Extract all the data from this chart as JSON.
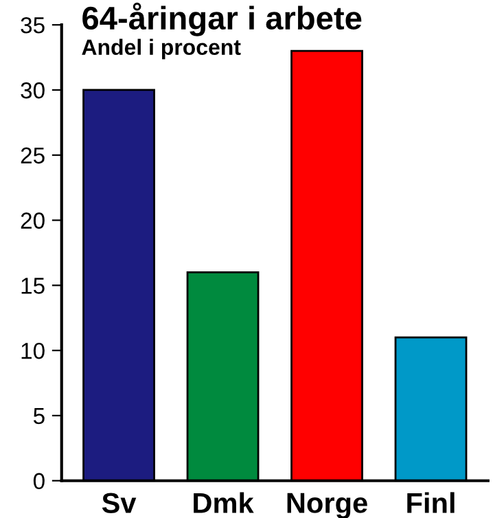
{
  "chart_data": {
    "type": "bar",
    "title": "64-åringar i arbete",
    "subtitle": "Andel i procent",
    "categories": [
      "Sv",
      "Dmk",
      "Norge",
      "Finl"
    ],
    "values": [
      30,
      16,
      33,
      11
    ],
    "colors": [
      "#1c1c80",
      "#008a3e",
      "#ff0000",
      "#0099c8"
    ],
    "ylim": [
      0,
      35
    ],
    "yticks": [
      0,
      5,
      10,
      15,
      20,
      25,
      30,
      35
    ],
    "grid": false,
    "legend": false
  }
}
